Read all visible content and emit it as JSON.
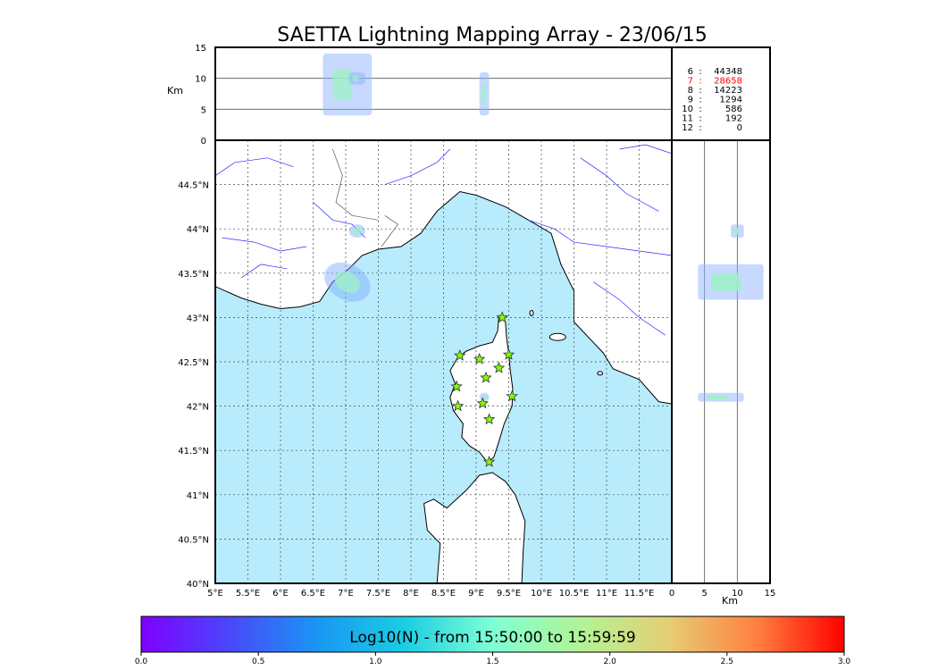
{
  "chart_data": {
    "type": "scatter",
    "title": "SAETTA Lightning Mapping Array - 23/06/15",
    "altitude_axis": {
      "label": "Km",
      "ticks": [
        0,
        5,
        10,
        15
      ],
      "range": [
        0,
        15
      ]
    },
    "map": {
      "lon_range": [
        5,
        12
      ],
      "lat_range": [
        40,
        45
      ],
      "lon_ticks": [
        5,
        5.5,
        6,
        6.5,
        7,
        7.5,
        8,
        8.5,
        9,
        9.5,
        10,
        10.5,
        11,
        11.5
      ],
      "lon_tick_labels": [
        "5°E",
        "5.5°E",
        "6°E",
        "6.5°E",
        "7°E",
        "7.5°E",
        "8°E",
        "8.5°E",
        "9°E",
        "9.5°E",
        "10°E",
        "10.5°E",
        "11°E",
        "11.5°E"
      ],
      "lat_ticks": [
        40,
        40.5,
        41,
        41.5,
        42,
        42.5,
        43,
        43.5,
        44,
        44.5
      ],
      "lat_tick_labels": [
        "40°N",
        "40.5°N",
        "41°N",
        "41.5°N",
        "42°N",
        "42.5°N",
        "43°N",
        "43.5°N",
        "44°N",
        "44.5°N"
      ],
      "grid": true,
      "sea_color": "#b8ecfc",
      "land_color": "#ffffff",
      "river_color": "#2b2bff"
    },
    "stations": [
      {
        "lon": 9.4,
        "lat": 43.0
      },
      {
        "lon": 8.75,
        "lat": 42.57
      },
      {
        "lon": 9.05,
        "lat": 42.53
      },
      {
        "lon": 9.5,
        "lat": 42.58
      },
      {
        "lon": 9.35,
        "lat": 42.43
      },
      {
        "lon": 9.15,
        "lat": 42.32
      },
      {
        "lon": 8.7,
        "lat": 42.22
      },
      {
        "lon": 9.55,
        "lat": 42.11
      },
      {
        "lon": 8.72,
        "lat": 42.0
      },
      {
        "lon": 9.1,
        "lat": 42.03
      },
      {
        "lon": 9.2,
        "lat": 41.85
      },
      {
        "lon": 9.2,
        "lat": 41.37
      }
    ],
    "source_clusters": [
      {
        "lon_min": 6.65,
        "lon_max": 7.4,
        "lat_min": 43.2,
        "lat_max": 43.6,
        "alt_min": 4,
        "alt_max": 14
      },
      {
        "lon_min": 7.05,
        "lon_max": 7.3,
        "lat_min": 43.9,
        "lat_max": 44.05,
        "alt_min": 9,
        "alt_max": 11
      },
      {
        "lon_min": 9.05,
        "lon_max": 9.2,
        "lat_min": 42.05,
        "lat_max": 42.15,
        "alt_min": 4,
        "alt_max": 11
      }
    ],
    "altitude_counts": {
      "header": "",
      "rows": [
        {
          "km": "6",
          "count": "44348",
          "color": "#000000"
        },
        {
          "km": "7",
          "count": "28658",
          "color": "#ff0000"
        },
        {
          "km": "8",
          "count": "14223",
          "color": "#000000"
        },
        {
          "km": "9",
          "count": "1294",
          "color": "#000000"
        },
        {
          "km": "10",
          "count": "586",
          "color": "#000000"
        },
        {
          "km": "11",
          "count": "192",
          "color": "#000000"
        },
        {
          "km": "12",
          "count": "0",
          "color": "#000000"
        }
      ]
    },
    "colorbar": {
      "label": "Log10(N) - from 15:50:00 to 15:59:59",
      "ticks": [
        "0.0",
        "0.5",
        "1.0",
        "1.5",
        "2.0",
        "2.5",
        "3.0"
      ],
      "range": [
        0,
        3
      ],
      "colormap": "rainbow"
    }
  }
}
